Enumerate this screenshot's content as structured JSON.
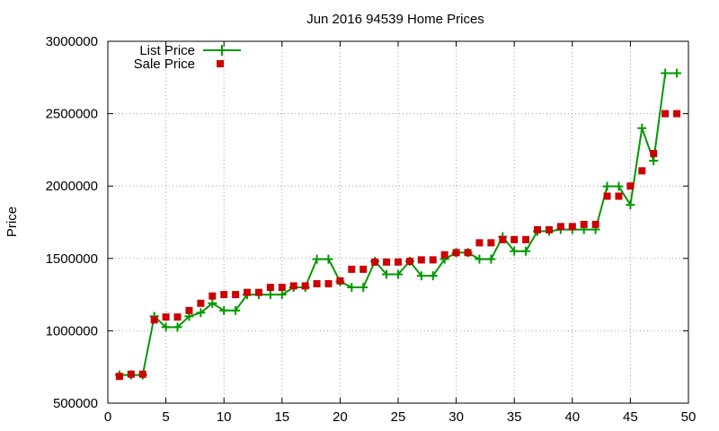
{
  "chart_data": {
    "type": "line",
    "title": "Jun 2016 94539 Home Prices",
    "xlabel": "",
    "ylabel": "Price",
    "xlim": [
      0,
      50
    ],
    "ylim": [
      500000,
      3000000
    ],
    "x_ticks": [
      0,
      5,
      10,
      15,
      20,
      25,
      30,
      35,
      40,
      45,
      50
    ],
    "y_ticks": [
      500000,
      1000000,
      1500000,
      2000000,
      2500000,
      3000000
    ],
    "grid": true,
    "legend_position": "top-left",
    "series": [
      {
        "name": "List Price",
        "style": "line-with-plus-markers",
        "color": "#009900",
        "x": [
          1,
          2,
          3,
          4,
          5,
          6,
          7,
          8,
          9,
          10,
          11,
          12,
          13,
          14,
          15,
          16,
          17,
          18,
          19,
          20,
          21,
          22,
          23,
          24,
          25,
          26,
          27,
          28,
          29,
          30,
          31,
          32,
          33,
          34,
          35,
          36,
          37,
          38,
          39,
          40,
          41,
          42,
          43,
          44,
          45,
          46,
          47,
          48,
          49
        ],
        "y": [
          695000,
          695000,
          695000,
          1100000,
          1025000,
          1025000,
          1100000,
          1125000,
          1190000,
          1140000,
          1140000,
          1250000,
          1250000,
          1250000,
          1250000,
          1300000,
          1300000,
          1495000,
          1495000,
          1340000,
          1300000,
          1300000,
          1480000,
          1390000,
          1390000,
          1480000,
          1380000,
          1380000,
          1495000,
          1540000,
          1540000,
          1495000,
          1495000,
          1650000,
          1550000,
          1550000,
          1688000,
          1688000,
          1700000,
          1700000,
          1700000,
          1700000,
          1998000,
          1998000,
          1870000,
          2400000,
          2175000,
          2780000,
          2780000
        ]
      },
      {
        "name": "Sale Price",
        "style": "square-markers",
        "color": "#cc0000",
        "x": [
          1,
          2,
          3,
          4,
          5,
          6,
          7,
          8,
          9,
          10,
          11,
          12,
          13,
          14,
          15,
          16,
          17,
          18,
          19,
          20,
          21,
          22,
          23,
          24,
          25,
          26,
          27,
          28,
          29,
          30,
          31,
          32,
          33,
          34,
          35,
          36,
          37,
          38,
          39,
          40,
          41,
          42,
          43,
          44,
          45,
          46,
          47,
          48,
          49
        ],
        "y": [
          685000,
          700000,
          700000,
          1075000,
          1095000,
          1095000,
          1140000,
          1190000,
          1240000,
          1250000,
          1250000,
          1265000,
          1265000,
          1300000,
          1300000,
          1310000,
          1310000,
          1325000,
          1325000,
          1345000,
          1425000,
          1425000,
          1475000,
          1475000,
          1475000,
          1480000,
          1490000,
          1490000,
          1525000,
          1540000,
          1540000,
          1608000,
          1608000,
          1630000,
          1630000,
          1630000,
          1698000,
          1698000,
          1720000,
          1720000,
          1735000,
          1735000,
          1930000,
          1930000,
          2000000,
          2105000,
          2225000,
          2500000,
          2500000
        ]
      }
    ]
  }
}
